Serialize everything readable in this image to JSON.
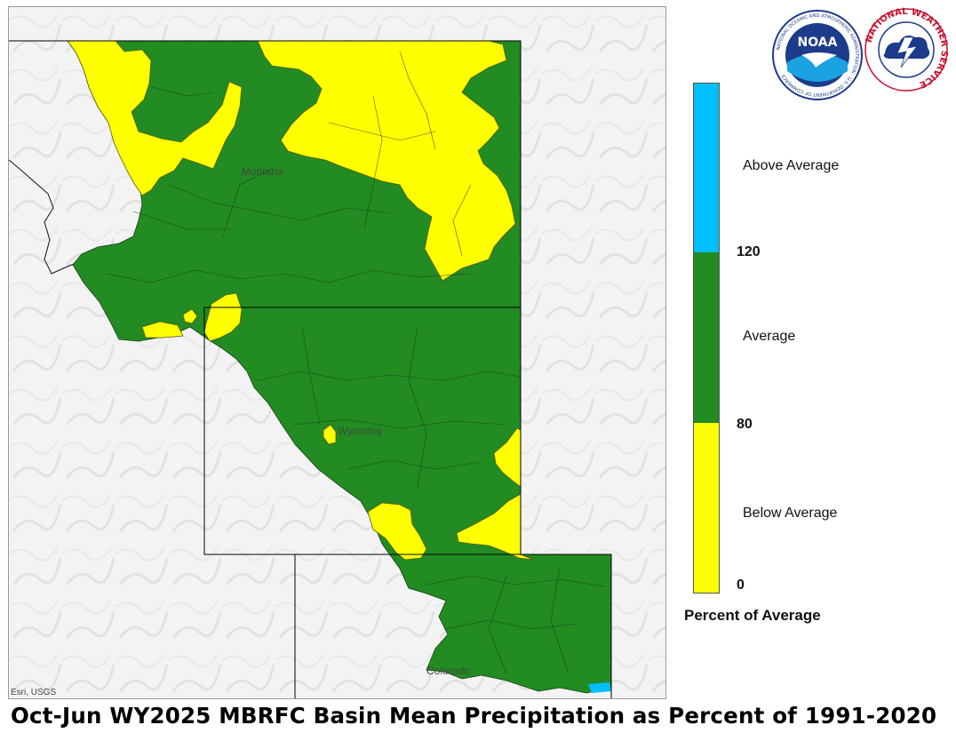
{
  "title": "Oct-Jun WY2025 MBRFC Basin Mean Precipitation as Percent of 1991-2020",
  "map": {
    "state_labels": [
      "Montana",
      "Wyoming",
      "Colorado"
    ],
    "attribution": "Esri, USGS"
  },
  "legend": {
    "title": "Percent of Average",
    "categories": [
      {
        "label": "Above Average",
        "color": "#00bfff"
      },
      {
        "label": "Average",
        "color": "#228b22"
      },
      {
        "label": "Below Average",
        "color": "#ffff00"
      }
    ],
    "breaks": [
      "120",
      "80",
      "0"
    ]
  },
  "logos": {
    "noaa_center": "NOAA",
    "noaa_ring": "NATIONAL OCEANIC AND ATMOSPHERIC ADMINISTRATION · U.S. DEPARTMENT OF COMMERCE",
    "nws_ring": "NATIONAL WEATHER SERVICE"
  },
  "colors": {
    "above": "#00bfff",
    "average": "#228b22",
    "below": "#ffff00",
    "boundary": "#1a1a1a",
    "basemap": "#f4f4f4"
  }
}
